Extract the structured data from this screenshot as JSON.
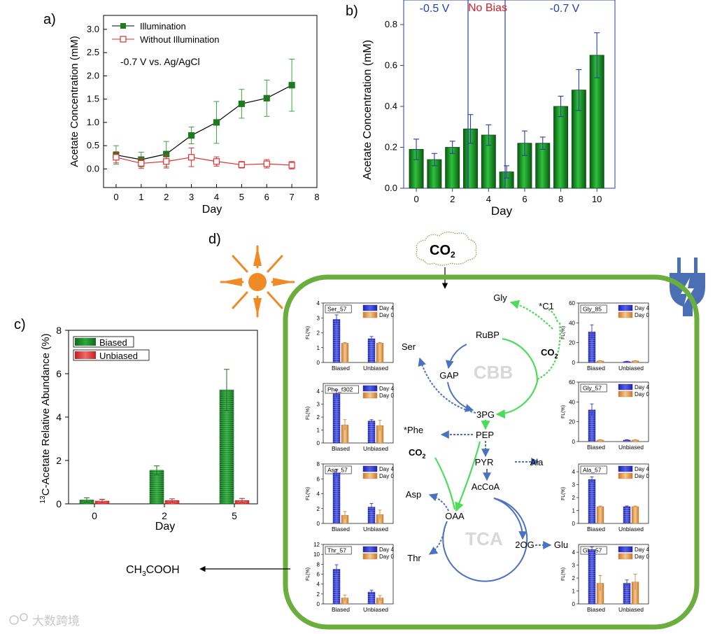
{
  "panel_labels": {
    "a": "a)",
    "b": "b)",
    "c": "c)",
    "d": "d)"
  },
  "colors": {
    "illum": "#1f7a1f",
    "noillum": "#e03030",
    "bias_blue": "#1f3fb0",
    "nobias_red": "#d81f26",
    "cell": "#6cae3e",
    "arrow_green": "#4ddc5a",
    "arrow_blue": "#4a72c0",
    "sun": "#f08a24",
    "day4": "#3c46c8",
    "day0": "#e8a860"
  },
  "chart_data": [
    {
      "type": "line",
      "id": "a",
      "title": "",
      "annotation": "-0.7 V vs. Ag/AgCl",
      "xlabel": "Day",
      "ylabel": "Acetate Concentration (mM)",
      "xlim": [
        -0.5,
        8
      ],
      "ylim": [
        -0.4,
        3.3
      ],
      "xticks": [
        0,
        1,
        2,
        3,
        4,
        5,
        6,
        7,
        8
      ],
      "yticks": [
        0.0,
        0.5,
        1.0,
        1.5,
        2.0,
        2.5,
        3.0
      ],
      "ytick_labels": [
        "0.0",
        "0.5",
        "1.0",
        "1.5",
        "2.0",
        "2.5",
        "3.0"
      ],
      "legend": "top-left",
      "series": [
        {
          "name": "Illumination",
          "x": [
            0,
            1,
            2,
            3,
            4,
            5,
            6,
            7
          ],
          "values": [
            0.3,
            0.2,
            0.32,
            0.72,
            1.0,
            1.4,
            1.52,
            1.8
          ],
          "errors": [
            0.2,
            0.16,
            0.27,
            0.18,
            0.45,
            0.31,
            0.39,
            0.56
          ]
        },
        {
          "name": "Without Illumination",
          "x": [
            0,
            1,
            2,
            3,
            4,
            5,
            6,
            7
          ],
          "values": [
            0.25,
            0.12,
            0.16,
            0.25,
            0.16,
            0.09,
            0.11,
            0.08
          ],
          "errors": [
            0.12,
            0.11,
            0.14,
            0.2,
            0.1,
            0.07,
            0.09,
            0.08
          ]
        }
      ]
    },
    {
      "type": "bar",
      "id": "b",
      "xlabel": "Day",
      "ylabel": "Acetate Concentration (mM)",
      "xlim": [
        -0.7,
        11
      ],
      "ylim": [
        0,
        0.92
      ],
      "xticks": [
        0,
        2,
        4,
        6,
        8,
        10
      ],
      "yticks": [
        0.0,
        0.2,
        0.4,
        0.6,
        0.8
      ],
      "ytick_labels": [
        "0.0",
        "0.2",
        "0.4",
        "0.6",
        "0.8"
      ],
      "x": [
        0,
        1,
        2,
        3,
        4,
        5,
        6,
        7,
        8,
        9,
        10
      ],
      "values": [
        0.19,
        0.14,
        0.2,
        0.29,
        0.26,
        0.08,
        0.22,
        0.22,
        0.4,
        0.48,
        0.65
      ],
      "errors": [
        0.05,
        0.03,
        0.03,
        0.07,
        0.05,
        0.03,
        0.06,
        0.03,
        0.05,
        0.1,
        0.11
      ],
      "regions": [
        {
          "label": "-0.5 V",
          "x_from": -0.7,
          "x_to": 3
        },
        {
          "label": "No Bias",
          "x_from": 3,
          "x_to": 5
        },
        {
          "label": "-0.7 V",
          "x_from": 5,
          "x_to": 11
        }
      ]
    },
    {
      "type": "bar",
      "id": "c",
      "xlabel": "Day",
      "ylabel_prefix": "13",
      "ylabel": "C-Acetate Relative Abundance  (%)",
      "ylim": [
        0,
        8
      ],
      "yticks": [
        0,
        2,
        4,
        6,
        8
      ],
      "ytick_labels": [
        "0",
        "2",
        "4",
        "6",
        "8"
      ],
      "categories": [
        "0",
        "2",
        "5"
      ],
      "legend": "top-left",
      "series": [
        {
          "name": "Biased",
          "values": [
            0.18,
            1.55,
            5.25
          ],
          "errors": [
            0.1,
            0.2,
            0.95
          ]
        },
        {
          "name": "Unbiased",
          "values": [
            0.13,
            0.15,
            0.15
          ],
          "errors": [
            0.08,
            0.08,
            0.1
          ]
        }
      ]
    }
  ],
  "panel_d": {
    "co2_cloud": "CO",
    "co2_sub": "2",
    "product_main": "CH",
    "product_sub1": "3",
    "product_tail": "COOH",
    "cycle_cbb": "CBB",
    "cycle_tca": "TCA",
    "metabolites": {
      "gly": "Gly",
      "c1": "*C1",
      "co2a": "CO",
      "rubp": "RuBP",
      "ser": "Ser",
      "gap": "GAP",
      "pg3": "3PG",
      "phe": "*Phe",
      "pep": "PEP",
      "co2b": "CO",
      "pyr": "PYR",
      "ala": "Ala",
      "acoa": "AcCoA",
      "asp": "Asp",
      "oaa": "OAA",
      "og2": "2OG",
      "glu": "Glu",
      "thr": "Thr"
    },
    "sub2": "2",
    "inset_common": {
      "ylabel": "FL(%)",
      "legend_day4": "Day 4",
      "legend_day0": "Day 0",
      "xcat_biased": "Biased",
      "xcat_unbiased": "Unbiased"
    },
    "insets": [
      {
        "id": "ser",
        "title": "Ser_57",
        "yticks": [
          0,
          1,
          2,
          3,
          4
        ],
        "ymax": 4,
        "day4": [
          2.9,
          1.6
        ],
        "day0": [
          1.3,
          1.3
        ],
        "err4": [
          0.3,
          0.15
        ],
        "err0": [
          0.05,
          0.05
        ]
      },
      {
        "id": "phe",
        "title": "Phe_f302",
        "yticks": [
          0,
          1,
          2,
          3,
          4
        ],
        "ymax": 4.6,
        "day4": [
          3.8,
          1.7
        ],
        "day0": [
          1.4,
          1.35
        ],
        "err4": [
          0.3,
          0.1
        ],
        "err0": [
          0.4,
          0.4
        ]
      },
      {
        "id": "asp",
        "title": "Asp_57",
        "yticks": [
          0,
          2,
          4,
          6,
          8
        ],
        "ymax": 8,
        "day4": [
          6.8,
          2.2
        ],
        "day0": [
          1.1,
          1.2
        ],
        "err4": [
          0.5,
          0.5
        ],
        "err0": [
          0.5,
          0.6
        ]
      },
      {
        "id": "thr",
        "title": "Thr_57",
        "yticks": [
          0,
          2,
          4,
          6,
          8,
          10,
          12
        ],
        "ymax": 12,
        "day4": [
          7.0,
          2.4
        ],
        "day0": [
          1.2,
          1.2
        ],
        "err4": [
          0.9,
          0.4
        ],
        "err0": [
          0.6,
          0.5
        ]
      },
      {
        "id": "gly85",
        "title": "Gly_85",
        "yticks": [
          0,
          20,
          40,
          60
        ],
        "ymax": 60,
        "day4": [
          31,
          1.0
        ],
        "day0": [
          1.5,
          1.5
        ],
        "err4": [
          7,
          0.3
        ],
        "err0": [
          0.3,
          0.3
        ]
      },
      {
        "id": "gly57",
        "title": "Gly_57",
        "yticks": [
          0,
          20,
          40,
          60
        ],
        "ymax": 60,
        "day4": [
          32,
          1.5
        ],
        "day0": [
          1.5,
          1.5
        ],
        "err4": [
          6,
          0.4
        ],
        "err0": [
          0.4,
          0.4
        ]
      },
      {
        "id": "ala",
        "title": "Ala_57",
        "yticks": [
          0,
          1,
          2,
          3,
          4
        ],
        "ymax": 4.6,
        "day4": [
          3.4,
          1.3
        ],
        "day0": [
          1.3,
          1.3
        ],
        "err4": [
          0.2,
          0.05
        ],
        "err0": [
          0.05,
          0.05
        ]
      },
      {
        "id": "glu",
        "title": "Glu_57",
        "yticks": [
          0,
          1,
          2,
          3,
          4
        ],
        "ymax": 4.6,
        "day4": [
          4.2,
          1.6
        ],
        "day0": [
          1.6,
          1.7
        ],
        "err4": [
          0.2,
          0.25
        ],
        "err0": [
          0.6,
          0.6
        ]
      }
    ]
  },
  "watermark": "大数跨境"
}
